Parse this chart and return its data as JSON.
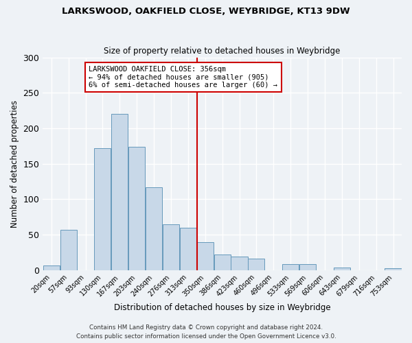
{
  "title": "LARKSWOOD, OAKFIELD CLOSE, WEYBRIDGE, KT13 9DW",
  "subtitle": "Size of property relative to detached houses in Weybridge",
  "xlabel": "Distribution of detached houses by size in Weybridge",
  "ylabel": "Number of detached properties",
  "bin_labels": [
    "20sqm",
    "57sqm",
    "93sqm",
    "130sqm",
    "167sqm",
    "203sqm",
    "240sqm",
    "276sqm",
    "313sqm",
    "350sqm",
    "386sqm",
    "423sqm",
    "460sqm",
    "496sqm",
    "533sqm",
    "569sqm",
    "606sqm",
    "643sqm",
    "679sqm",
    "716sqm",
    "753sqm"
  ],
  "bar_heights": [
    7,
    57,
    0,
    172,
    220,
    174,
    117,
    65,
    60,
    40,
    22,
    19,
    16,
    0,
    9,
    9,
    0,
    4,
    0,
    0,
    3
  ],
  "bar_color": "#c8d8e8",
  "bar_edgecolor": "#6699bb",
  "property_bin_index": 9,
  "vline_color": "#cc0000",
  "annotation_text": "LARKSWOOD OAKFIELD CLOSE: 356sqm\n← 94% of detached houses are smaller (905)\n6% of semi-detached houses are larger (60) →",
  "annotation_box_edgecolor": "#cc0000",
  "background_color": "#eef2f6",
  "grid_color": "#ffffff",
  "ylim": [
    0,
    300
  ],
  "yticks": [
    0,
    50,
    100,
    150,
    200,
    250,
    300
  ],
  "footnote1": "Contains HM Land Registry data © Crown copyright and database right 2024.",
  "footnote2": "Contains public sector information licensed under the Open Government Licence v3.0."
}
